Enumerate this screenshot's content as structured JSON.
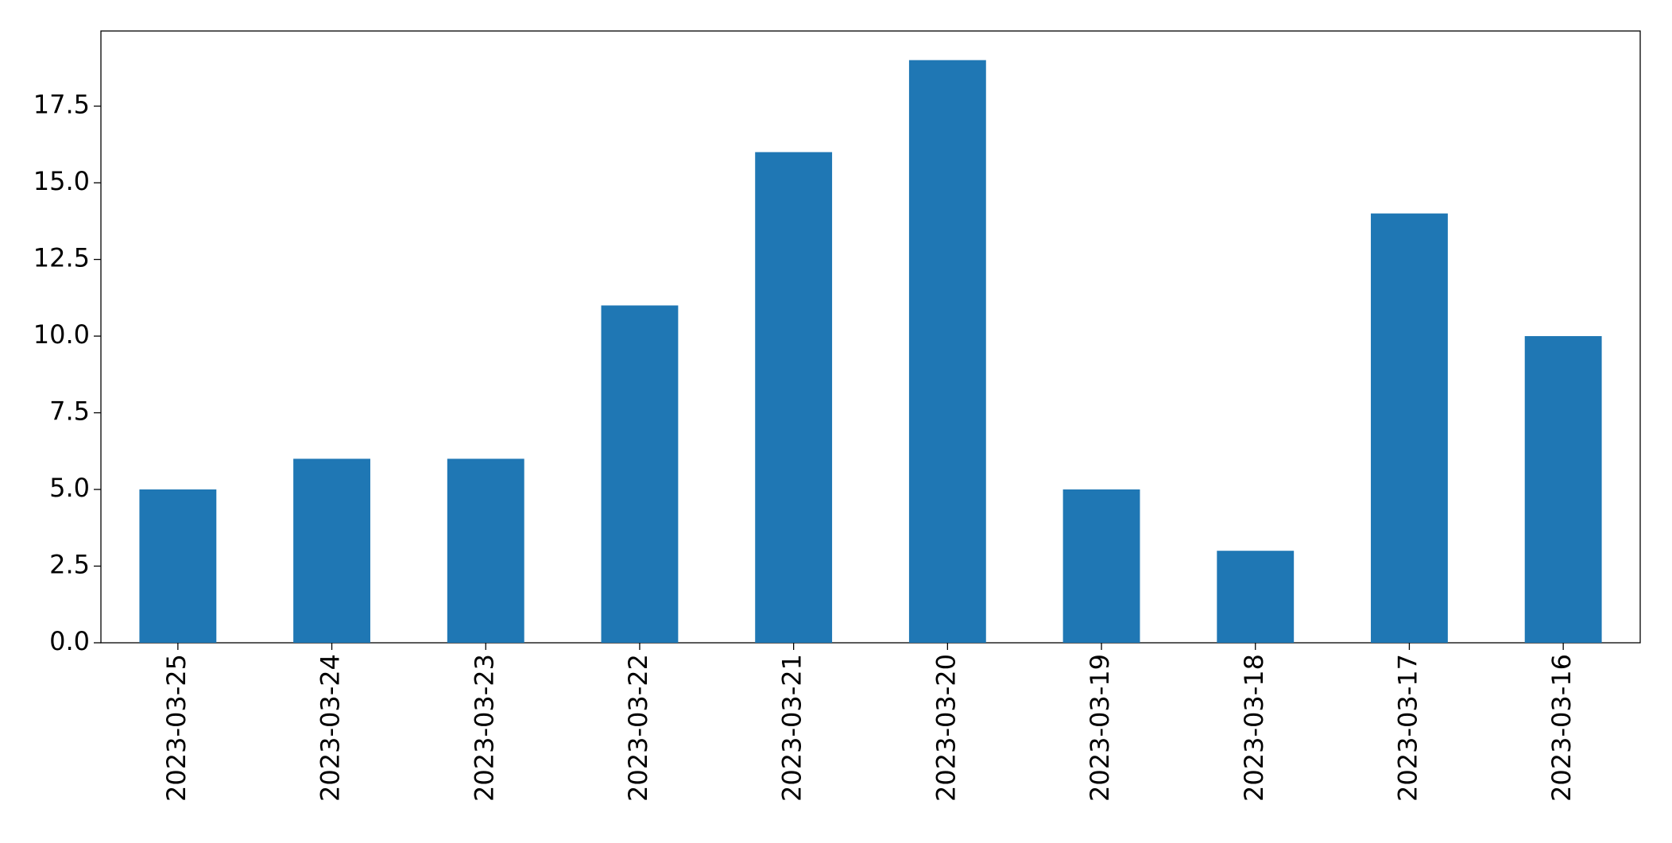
{
  "chart_data": {
    "type": "bar",
    "categories": [
      "2023-03-25",
      "2023-03-24",
      "2023-03-23",
      "2023-03-22",
      "2023-03-21",
      "2023-03-20",
      "2023-03-19",
      "2023-03-18",
      "2023-03-17",
      "2023-03-16"
    ],
    "values": [
      5,
      6,
      6,
      11,
      16,
      19,
      5,
      3,
      14,
      10
    ],
    "color": "#1f77b4",
    "ylim": [
      0,
      19.95
    ],
    "yticks": [
      {
        "value": 0,
        "label": "0.0"
      },
      2.5,
      {
        "value": 5,
        "label": "5.0"
      },
      7.5,
      {
        "value": 10,
        "label": "10.0"
      },
      12.5,
      {
        "value": 15,
        "label": "15.0"
      },
      17.5
    ],
    "grid": false
  }
}
